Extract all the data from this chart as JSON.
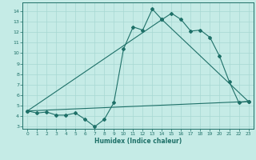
{
  "xlabel": "Humidex (Indice chaleur)",
  "bg_color": "#c5ebe6",
  "grid_color": "#a8d8d2",
  "line_color": "#1e7068",
  "xlim": [
    -0.5,
    23.5
  ],
  "ylim": [
    2.8,
    14.8
  ],
  "xticks": [
    0,
    1,
    2,
    3,
    4,
    5,
    6,
    7,
    8,
    9,
    10,
    11,
    12,
    13,
    14,
    15,
    16,
    17,
    18,
    19,
    20,
    21,
    22,
    23
  ],
  "yticks": [
    3,
    4,
    5,
    6,
    7,
    8,
    9,
    10,
    11,
    12,
    13,
    14
  ],
  "line1_x": [
    0,
    1,
    2,
    3,
    4,
    5,
    6,
    7,
    8,
    9,
    10,
    11,
    12,
    13,
    14,
    15,
    16,
    17,
    18,
    19,
    20,
    21,
    22,
    23
  ],
  "line1_y": [
    4.5,
    4.3,
    4.4,
    4.1,
    4.1,
    4.3,
    3.7,
    3.0,
    3.7,
    5.3,
    10.4,
    12.5,
    12.2,
    14.2,
    13.2,
    13.8,
    13.2,
    12.1,
    12.2,
    11.5,
    9.7,
    7.3,
    5.3,
    5.4
  ],
  "line2_x": [
    0,
    23
  ],
  "line2_y": [
    4.5,
    5.4
  ],
  "line3_x": [
    0,
    14,
    23
  ],
  "line3_y": [
    4.5,
    13.2,
    5.4
  ],
  "fill_x": [
    0,
    1,
    2,
    3,
    4,
    5,
    6,
    7,
    8,
    9,
    10,
    11,
    12,
    13,
    14,
    15,
    16,
    17,
    18,
    19,
    20,
    21,
    22,
    23
  ],
  "fill_y_top": [
    4.5,
    4.3,
    4.4,
    4.1,
    4.1,
    4.3,
    3.7,
    3.0,
    3.7,
    5.3,
    10.4,
    12.5,
    12.2,
    14.2,
    13.2,
    13.8,
    13.2,
    12.1,
    12.2,
    11.5,
    9.7,
    7.3,
    5.3,
    5.4
  ]
}
